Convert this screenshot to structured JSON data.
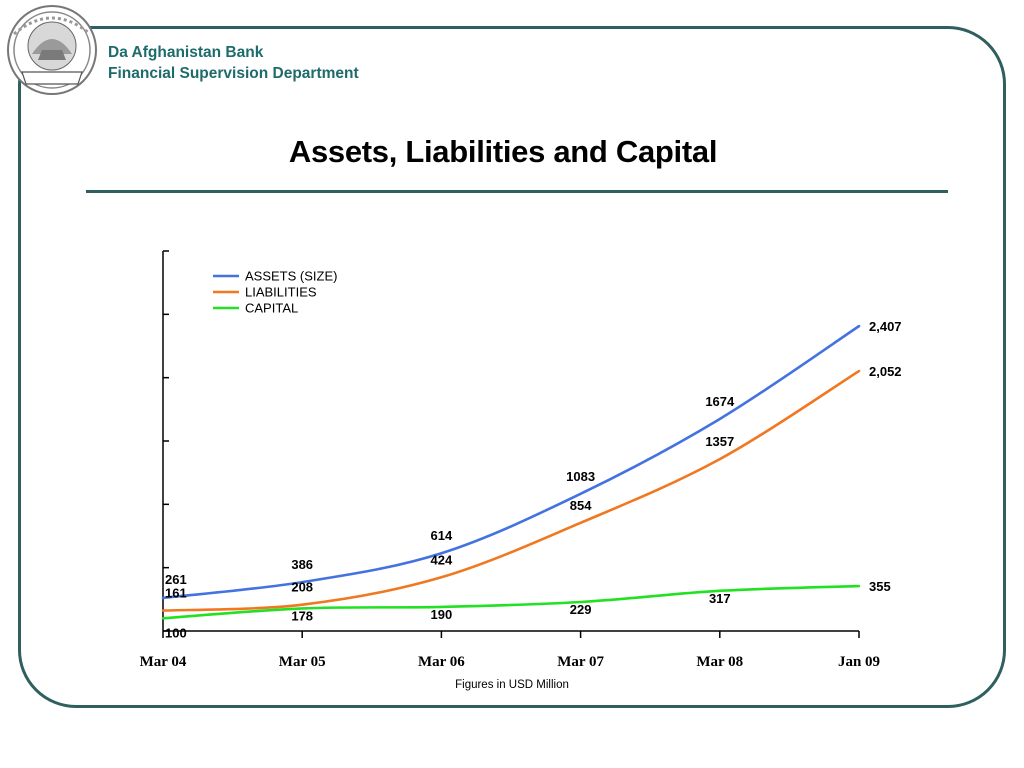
{
  "header": {
    "org_name": "Da Afghanistan Bank",
    "department": "Financial Supervision Department",
    "logo_text": "DA AFGHANISTAN BANK"
  },
  "slide": {
    "title": "Assets, Liabilities and Capital"
  },
  "footer": {
    "units_note": "Figures in USD Million"
  },
  "chart_data": {
    "type": "line",
    "categories": [
      "Mar 04",
      "Mar 05",
      "Mar 06",
      "Mar 07",
      "Mar 08",
      "Jan 09"
    ],
    "series": [
      {
        "name": "ASSETS (SIZE)",
        "color": "#4472E0",
        "values": [
          261,
          386,
          614,
          1083,
          1674,
          2407
        ],
        "labels": [
          "261",
          "386",
          "614",
          "1083",
          "1674",
          "2,407"
        ]
      },
      {
        "name": "LIABILITIES",
        "color": "#F07820",
        "values": [
          161,
          208,
          424,
          854,
          1357,
          2052
        ],
        "labels": [
          "161",
          "208",
          "424",
          "854",
          "1357",
          "2,052"
        ]
      },
      {
        "name": "CAPITAL",
        "color": "#22E022",
        "values": [
          100,
          178,
          190,
          229,
          317,
          355
        ],
        "labels": [
          "100",
          "178",
          "190",
          "229",
          "317",
          "355"
        ]
      }
    ],
    "ylim": [
      0,
      3000
    ],
    "y_tick_count": 7,
    "show_y_tick_labels": false,
    "grid": false,
    "legend_position": "top-left"
  }
}
